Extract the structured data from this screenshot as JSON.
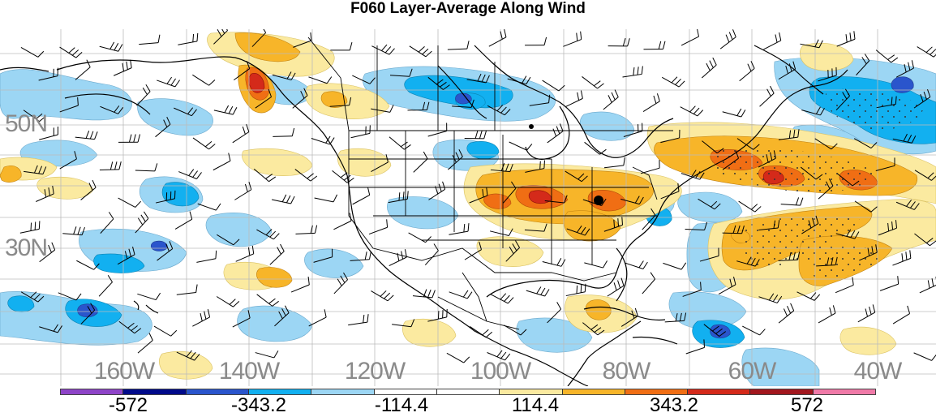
{
  "title": "F060 Layer-Average Along Wind",
  "lat_labels": [
    "50N",
    "30N"
  ],
  "lon_labels": [
    "160W",
    "140W",
    "120W",
    "100W",
    "80W",
    "60W",
    "40W"
  ],
  "colorbar": {
    "colors": [
      "#8e44c8",
      "#000a8a",
      "#2a55cc",
      "#12b0f0",
      "#9cd6f4",
      "#ffffff",
      "#ffffff",
      "#fbeaa0",
      "#f7b529",
      "#f06e14",
      "#d42a1a",
      "#a2171e",
      "#f07aa8"
    ],
    "tick_labels": [
      "-572",
      "-343.2",
      "-114.4",
      "114.4",
      "343.2",
      "572"
    ]
  },
  "map": {
    "gridline_color": "#bbbbbb",
    "coastline_color": "#000000",
    "station_marker": "dot"
  }
}
